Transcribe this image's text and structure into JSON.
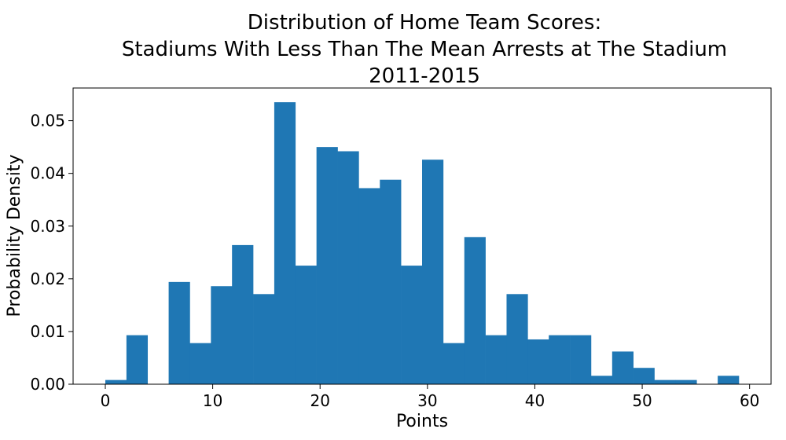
{
  "chart_data": {
    "type": "bar",
    "title_lines": [
      "Distribution of Home Team Scores:",
      "Stadiums With Less Than The Mean Arrests at The Stadium",
      "2011-2015"
    ],
    "xlabel": "Points",
    "ylabel": "Probability Density",
    "xlim": [
      -3,
      62
    ],
    "ylim": [
      0,
      0.0562
    ],
    "xticks": [
      0,
      10,
      20,
      30,
      40,
      50,
      60
    ],
    "yticks": [
      0.0,
      0.01,
      0.02,
      0.03,
      0.04,
      0.05
    ],
    "ytick_labels": [
      "0.00",
      "0.01",
      "0.02",
      "0.03",
      "0.04",
      "0.05"
    ],
    "grid": false,
    "bar_color": "#1f77b4",
    "bin_edges": [
      0,
      1.967,
      3.933,
      5.9,
      7.867,
      9.833,
      11.8,
      13.767,
      15.733,
      17.7,
      19.667,
      21.633,
      23.6,
      25.567,
      27.533,
      29.5,
      31.467,
      33.433,
      35.4,
      37.367,
      39.333,
      41.3,
      43.267,
      45.233,
      47.2,
      49.167,
      51.133,
      53.1,
      55.067,
      57.033,
      59
    ],
    "values": [
      0.0008,
      0.0093,
      0.0,
      0.0194,
      0.0078,
      0.0186,
      0.0264,
      0.0171,
      0.0535,
      0.0225,
      0.045,
      0.0442,
      0.0372,
      0.0388,
      0.0225,
      0.0426,
      0.0078,
      0.0279,
      0.0093,
      0.0171,
      0.0085,
      0.0093,
      0.0093,
      0.0016,
      0.0062,
      0.0031,
      0.0008,
      0.0008,
      0.0,
      0.0016
    ]
  }
}
